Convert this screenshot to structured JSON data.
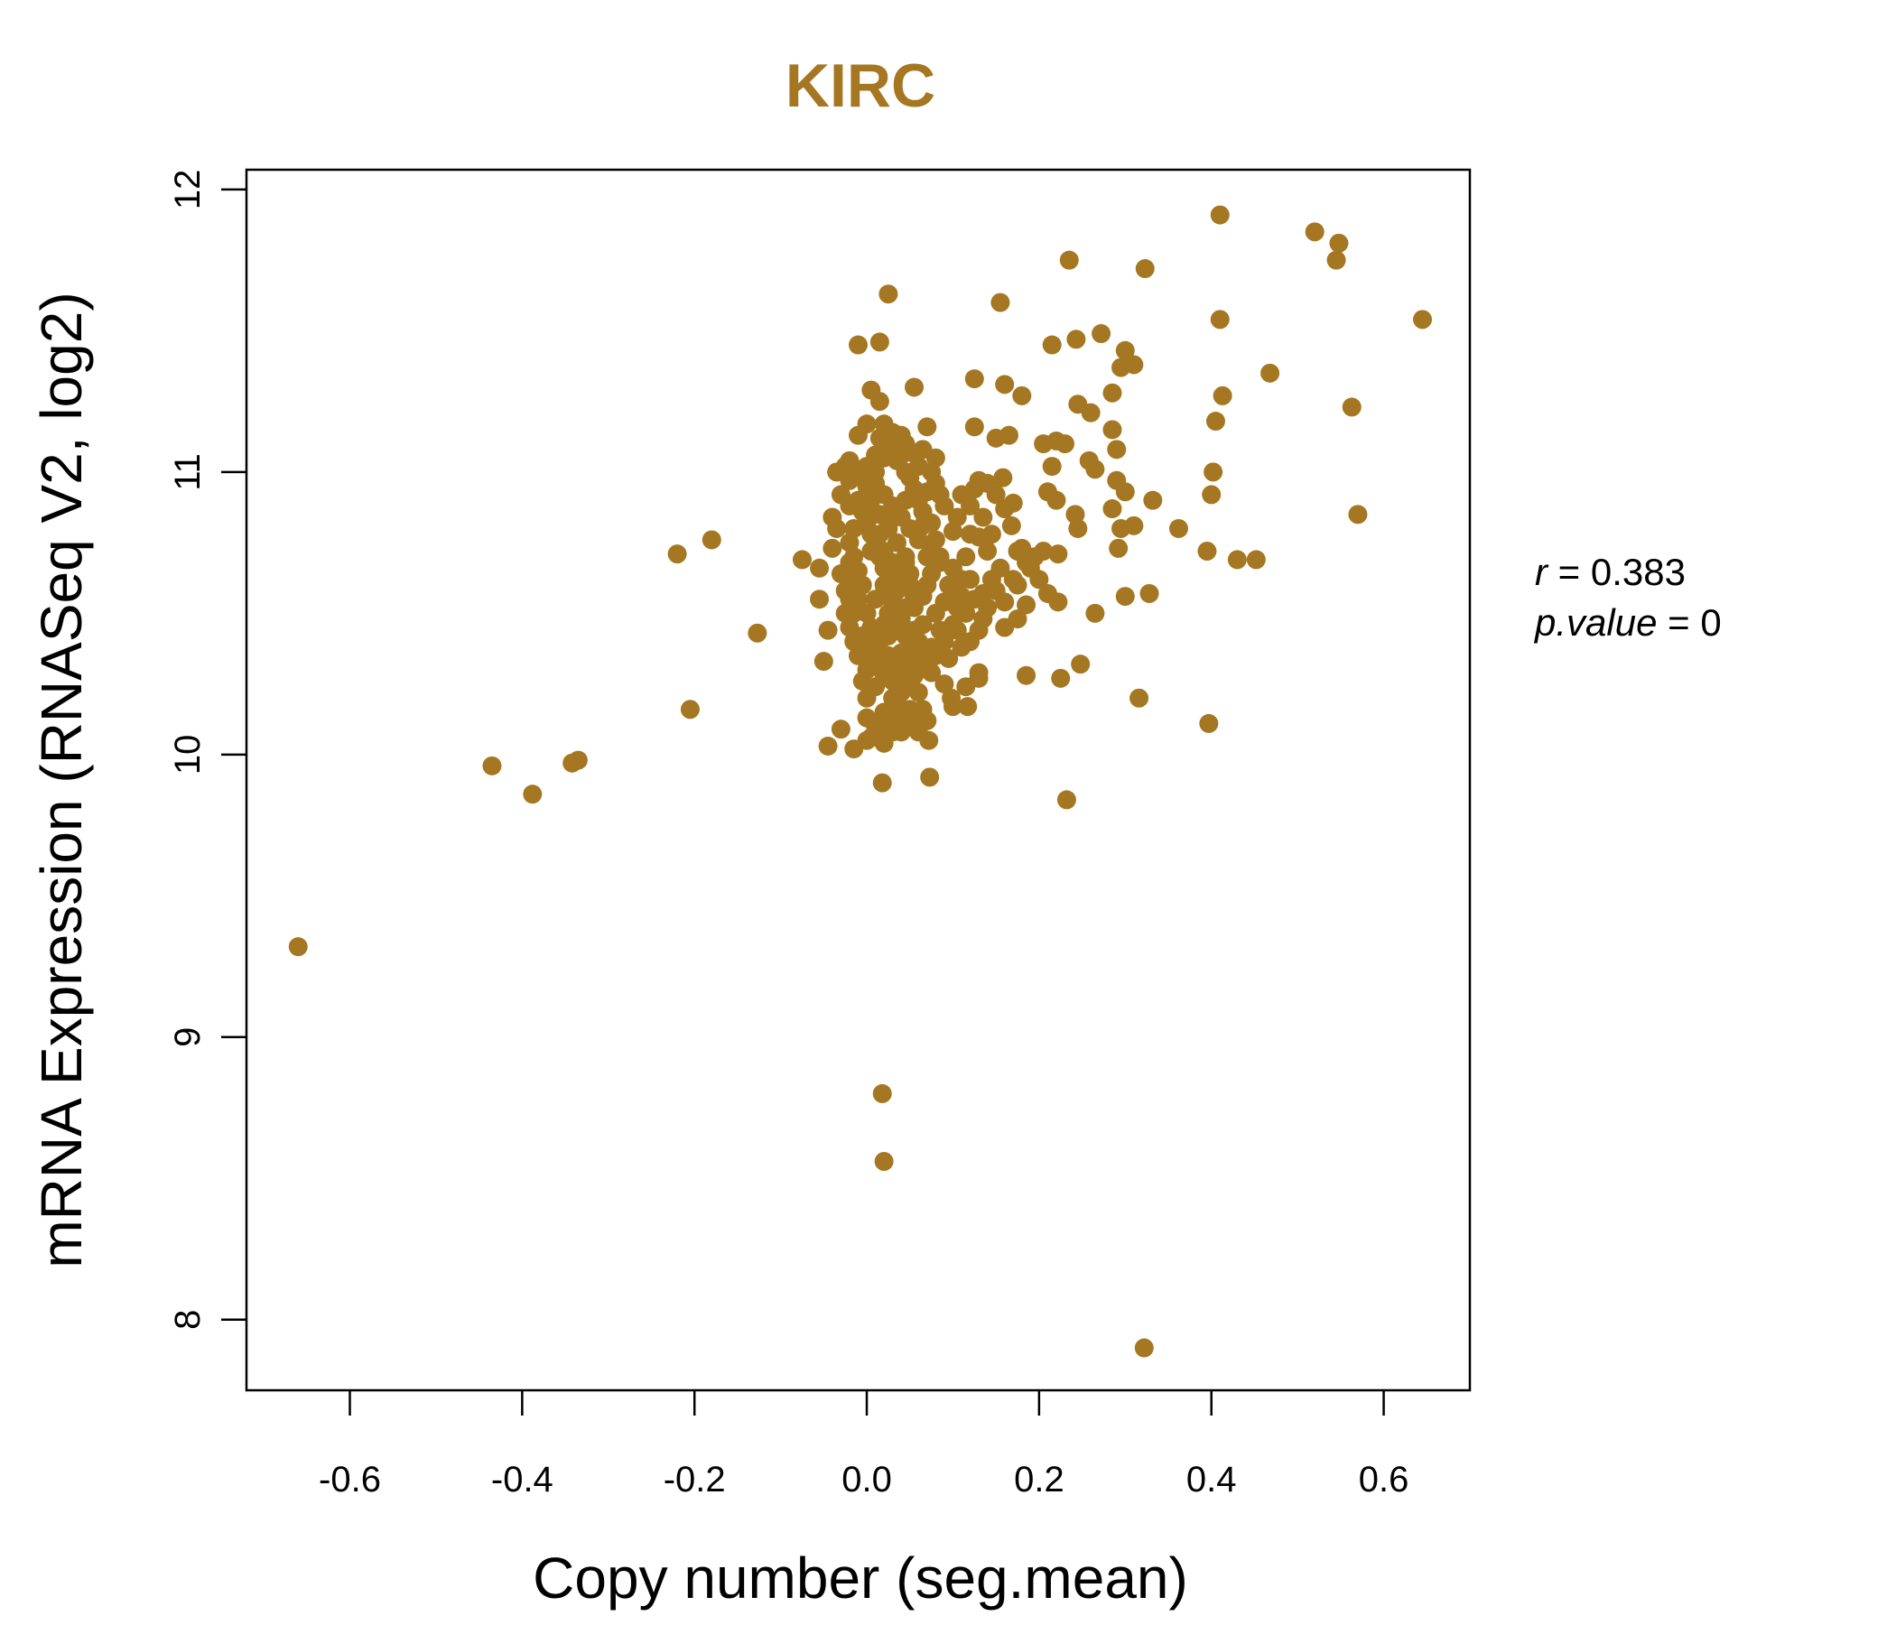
{
  "chart_data": {
    "type": "scatter",
    "title": "KIRC",
    "xlabel": "Copy number (seg.mean)",
    "ylabel": "mRNA Expression (RNASeq V2, log2)",
    "xlim": [
      -0.72,
      0.7
    ],
    "ylim": [
      7.75,
      12.07
    ],
    "x_ticks": [
      -0.6,
      -0.4,
      -0.2,
      0.0,
      0.2,
      0.4,
      0.6
    ],
    "x_tick_labels": [
      "-0.6",
      "-0.4",
      "-0.2",
      "0.0",
      "0.2",
      "0.4",
      "0.6"
    ],
    "y_ticks": [
      8,
      9,
      10,
      11,
      12
    ],
    "y_tick_labels": [
      "8",
      "9",
      "10",
      "11",
      "12"
    ],
    "grid": false,
    "stats": {
      "r_label": "r",
      "r_value": "0.383",
      "p_label": "p.value",
      "p_value": "0"
    },
    "colors": {
      "points": "#A57722",
      "title": "#A57722",
      "axes": "#000000"
    },
    "points": [
      [
        -0.66,
        9.32
      ],
      [
        -0.435,
        9.96
      ],
      [
        -0.388,
        9.86
      ],
      [
        -0.342,
        9.97
      ],
      [
        -0.335,
        9.98
      ],
      [
        -0.22,
        10.71
      ],
      [
        -0.18,
        10.76
      ],
      [
        -0.205,
        10.16
      ],
      [
        -0.127,
        10.43
      ],
      [
        0.41,
        11.91
      ],
      [
        0.52,
        11.85
      ],
      [
        0.548,
        11.81
      ],
      [
        0.545,
        11.75
      ],
      [
        0.645,
        11.54
      ],
      [
        0.235,
        11.75
      ],
      [
        0.323,
        11.72
      ],
      [
        0.155,
        11.6
      ],
      [
        0.025,
        11.63
      ],
      [
        0.41,
        11.54
      ],
      [
        0.468,
        11.35
      ],
      [
        0.413,
        11.27
      ],
      [
        0.563,
        11.23
      ],
      [
        0.57,
        10.85
      ],
      [
        0.405,
        11.18
      ],
      [
        0.402,
        11.0
      ],
      [
        0.4,
        10.92
      ],
      [
        0.43,
        10.69
      ],
      [
        0.452,
        10.69
      ],
      [
        0.395,
        10.72
      ],
      [
        0.362,
        10.8
      ],
      [
        0.332,
        10.9
      ],
      [
        0.328,
        10.57
      ],
      [
        0.3,
        10.56
      ],
      [
        0.316,
        10.2
      ],
      [
        0.397,
        10.11
      ],
      [
        0.322,
        7.9
      ],
      [
        0.232,
        9.84
      ],
      [
        0.018,
        8.8
      ],
      [
        0.02,
        8.56
      ],
      [
        -0.01,
        11.45
      ],
      [
        0.015,
        11.46
      ],
      [
        0.055,
        11.3
      ],
      [
        0.125,
        11.33
      ],
      [
        0.16,
        11.31
      ],
      [
        0.18,
        11.27
      ],
      [
        0.215,
        11.45
      ],
      [
        0.243,
        11.47
      ],
      [
        0.272,
        11.49
      ],
      [
        0.3,
        11.43
      ],
      [
        0.31,
        11.38
      ],
      [
        0.295,
        11.37
      ],
      [
        0.285,
        11.28
      ],
      [
        0.245,
        11.24
      ],
      [
        0.26,
        11.21
      ],
      [
        0.285,
        11.15
      ],
      [
        0.29,
        11.08
      ],
      [
        0.258,
        11.04
      ],
      [
        0.265,
        11.01
      ],
      [
        0.29,
        10.97
      ],
      [
        0.3,
        10.93
      ],
      [
        0.285,
        10.87
      ],
      [
        0.295,
        10.8
      ],
      [
        0.31,
        10.81
      ],
      [
        0.292,
        10.73
      ],
      [
        0.265,
        10.5
      ],
      [
        0.248,
        10.32
      ],
      [
        0.225,
        10.27
      ],
      [
        0.185,
        10.28
      ],
      [
        0.222,
        10.54
      ],
      [
        0.21,
        10.57
      ],
      [
        0.245,
        10.8
      ],
      [
        0.242,
        10.85
      ],
      [
        0.22,
        10.9
      ],
      [
        0.215,
        11.02
      ],
      [
        0.205,
        11.1
      ],
      [
        0.22,
        11.11
      ],
      [
        0.23,
        11.1
      ],
      [
        0.21,
        10.93
      ],
      [
        0.205,
        10.72
      ],
      [
        0.222,
        10.71
      ],
      [
        0.168,
        10.81
      ],
      [
        0.16,
        10.87
      ],
      [
        0.17,
        10.89
      ],
      [
        0.15,
        10.92
      ],
      [
        0.158,
        10.98
      ],
      [
        0.13,
        10.97
      ],
      [
        0.125,
        10.94
      ],
      [
        0.14,
        10.96
      ],
      [
        0.125,
        11.16
      ],
      [
        0.165,
        11.13
      ],
      [
        0.15,
        11.12
      ],
      [
        0.185,
        10.68
      ],
      [
        0.18,
        10.73
      ],
      [
        0.155,
        10.66
      ],
      [
        0.175,
        10.6
      ],
      [
        0.16,
        10.54
      ],
      [
        0.185,
        10.53
      ],
      [
        0.16,
        10.45
      ],
      [
        0.175,
        10.48
      ],
      [
        0.135,
        10.57
      ],
      [
        0.125,
        10.55
      ],
      [
        0.13,
        10.44
      ],
      [
        0.12,
        10.4
      ],
      [
        0.11,
        10.38
      ],
      [
        0.13,
        10.29
      ],
      [
        0.13,
        10.27
      ],
      [
        0.115,
        10.24
      ],
      [
        0.098,
        10.2
      ],
      [
        0.117,
        10.17
      ],
      [
        0.1,
        10.17
      ],
      [
        0.09,
        10.25
      ],
      [
        0.075,
        10.29
      ],
      [
        0.08,
        10.35
      ],
      [
        0.072,
        10.05
      ],
      [
        0.073,
        9.92
      ],
      [
        0.018,
        9.9
      ],
      [
        0.0,
        10.13
      ],
      [
        -0.015,
        10.02
      ],
      [
        -0.045,
        10.03
      ],
      [
        -0.03,
        10.09
      ],
      [
        -0.05,
        10.33
      ],
      [
        -0.045,
        10.44
      ],
      [
        -0.055,
        10.55
      ],
      [
        -0.055,
        10.66
      ],
      [
        -0.075,
        10.69
      ],
      [
        -0.04,
        10.73
      ],
      [
        -0.035,
        10.8
      ],
      [
        -0.04,
        10.84
      ],
      [
        -0.02,
        10.88
      ],
      [
        -0.03,
        10.92
      ],
      [
        -0.02,
        10.97
      ],
      [
        -0.035,
        11.0
      ],
      [
        -0.02,
        11.04
      ],
      [
        -0.025,
        11.02
      ],
      [
        -0.01,
        11.13
      ],
      [
        0.0,
        11.17
      ],
      [
        0.005,
        11.29
      ],
      [
        0.015,
        11.25
      ],
      [
        0.02,
        11.17
      ],
      [
        0.04,
        11.13
      ],
      [
        0.05,
        11.07
      ],
      [
        0.07,
        11.16
      ],
      [
        0.08,
        11.05
      ],
      [
        0.07,
        10.93
      ],
      [
        0.09,
        10.88
      ],
      [
        0.085,
        10.92
      ],
      [
        0.1,
        10.79
      ],
      [
        0.12,
        10.78
      ],
      [
        0.13,
        10.77
      ],
      [
        0.115,
        10.7
      ],
      [
        0.1,
        10.66
      ],
      [
        0.12,
        10.62
      ],
      [
        0.11,
        10.56
      ],
      [
        0.09,
        10.54
      ],
      [
        0.095,
        10.6
      ],
      [
        0.085,
        10.68
      ],
      [
        0.075,
        10.73
      ],
      [
        0.065,
        10.81
      ],
      [
        0.06,
        10.9
      ],
      [
        0.05,
        10.98
      ],
      [
        0.04,
        11.06
      ],
      [
        0.03,
        11.1
      ],
      [
        0.02,
        11.05
      ],
      [
        0.01,
        11.0
      ],
      [
        0.0,
        10.95
      ],
      [
        0.005,
        10.9
      ],
      [
        0.015,
        10.85
      ],
      [
        0.025,
        10.8
      ],
      [
        0.035,
        10.75
      ],
      [
        0.045,
        10.7
      ],
      [
        0.03,
        10.65
      ],
      [
        0.02,
        10.6
      ],
      [
        0.01,
        10.55
      ],
      [
        0.0,
        10.5
      ],
      [
        0.005,
        10.45
      ],
      [
        0.015,
        10.4
      ],
      [
        0.025,
        10.35
      ],
      [
        0.035,
        10.3
      ],
      [
        0.045,
        10.25
      ],
      [
        0.03,
        10.2
      ],
      [
        0.02,
        10.15
      ],
      [
        0.01,
        10.1
      ],
      [
        0.0,
        10.05
      ],
      [
        0.03,
        10.08
      ],
      [
        0.04,
        10.12
      ],
      [
        0.05,
        10.16
      ],
      [
        0.06,
        10.22
      ],
      [
        0.055,
        10.28
      ],
      [
        0.05,
        10.34
      ],
      [
        0.06,
        10.4
      ],
      [
        0.065,
        10.46
      ],
      [
        0.055,
        10.52
      ],
      [
        0.06,
        10.58
      ],
      [
        0.05,
        10.64
      ],
      [
        0.045,
        10.68
      ],
      [
        0.04,
        10.62
      ],
      [
        0.035,
        10.58
      ],
      [
        0.03,
        10.54
      ],
      [
        0.025,
        10.5
      ],
      [
        0.02,
        10.46
      ],
      [
        0.015,
        10.42
      ],
      [
        0.01,
        10.38
      ],
      [
        0.005,
        10.34
      ],
      [
        0.0,
        10.3
      ],
      [
        -0.005,
        10.26
      ],
      [
        0.0,
        10.2
      ],
      [
        0.01,
        10.24
      ],
      [
        0.02,
        10.28
      ],
      [
        0.03,
        10.32
      ],
      [
        0.04,
        10.36
      ],
      [
        0.045,
        10.42
      ],
      [
        0.04,
        10.48
      ],
      [
        0.035,
        10.52
      ],
      [
        0.03,
        10.56
      ],
      [
        0.025,
        10.62
      ],
      [
        0.02,
        10.66
      ],
      [
        0.015,
        10.7
      ],
      [
        0.01,
        10.74
      ],
      [
        0.005,
        10.78
      ],
      [
        0.0,
        10.82
      ],
      [
        -0.005,
        10.86
      ],
      [
        -0.01,
        10.9
      ],
      [
        -0.015,
        10.8
      ],
      [
        -0.02,
        10.75
      ],
      [
        -0.015,
        10.7
      ],
      [
        -0.01,
        10.65
      ],
      [
        -0.005,
        10.6
      ],
      [
        -0.01,
        10.55
      ],
      [
        -0.015,
        10.5
      ],
      [
        -0.02,
        10.45
      ],
      [
        -0.015,
        10.4
      ],
      [
        -0.01,
        10.35
      ],
      [
        -0.02,
        10.62
      ],
      [
        -0.025,
        10.58
      ],
      [
        0.01,
        10.96
      ],
      [
        0.02,
        10.92
      ],
      [
        0.03,
        10.88
      ],
      [
        0.04,
        10.84
      ],
      [
        0.05,
        10.8
      ],
      [
        0.06,
        10.76
      ],
      [
        0.07,
        10.7
      ],
      [
        0.075,
        10.64
      ],
      [
        0.07,
        10.6
      ],
      [
        0.065,
        10.56
      ],
      [
        0.08,
        10.5
      ],
      [
        0.085,
        10.44
      ],
      [
        0.09,
        10.4
      ],
      [
        0.1,
        10.46
      ],
      [
        0.105,
        10.52
      ],
      [
        0.075,
        10.38
      ],
      [
        0.065,
        10.34
      ],
      [
        0.06,
        10.3
      ],
      [
        0.05,
        10.26
      ],
      [
        0.04,
        10.22
      ],
      [
        0.035,
        10.18
      ],
      [
        0.025,
        10.14
      ],
      [
        0.015,
        10.1
      ],
      [
        0.005,
        10.06
      ],
      [
        0.02,
        10.04
      ],
      [
        0.04,
        10.08
      ],
      [
        0.055,
        10.12
      ],
      [
        0.065,
        10.16
      ],
      [
        0.07,
        10.12
      ],
      [
        0.06,
        10.08
      ],
      [
        0.045,
        11.0
      ],
      [
        0.035,
        11.04
      ],
      [
        0.025,
        11.08
      ],
      [
        0.06,
        11.02
      ],
      [
        0.055,
        10.94
      ],
      [
        0.045,
        10.9
      ],
      [
        0.035,
        10.86
      ],
      [
        0.025,
        10.82
      ],
      [
        0.015,
        10.78
      ],
      [
        0.005,
        10.72
      ],
      [
        0.02,
        10.72
      ],
      [
        0.03,
        10.68
      ],
      [
        0.04,
        10.64
      ],
      [
        0.05,
        10.6
      ],
      [
        0.055,
        10.56
      ],
      [
        0.045,
        10.52
      ],
      [
        0.035,
        10.46
      ],
      [
        0.025,
        10.42
      ],
      [
        0.015,
        10.36
      ],
      [
        0.005,
        10.32
      ],
      [
        0.02,
        10.3
      ],
      [
        0.03,
        10.26
      ],
      [
        0.04,
        10.3
      ],
      [
        0.05,
        10.38
      ],
      [
        0.055,
        10.44
      ],
      [
        0.015,
        11.12
      ],
      [
        0.03,
        11.14
      ],
      [
        0.045,
        11.1
      ],
      [
        0.065,
        11.08
      ],
      [
        0.075,
        11.0
      ],
      [
        0.08,
        10.96
      ],
      [
        0.065,
        10.86
      ],
      [
        0.075,
        10.82
      ],
      [
        0.08,
        10.76
      ],
      [
        0.085,
        10.7
      ],
      [
        -0.005,
        10.98
      ],
      [
        -0.01,
        11.0
      ],
      [
        0.0,
        11.02
      ],
      [
        0.01,
        11.06
      ],
      [
        -0.02,
        10.68
      ],
      [
        -0.03,
        10.64
      ],
      [
        -0.025,
        10.5
      ],
      [
        -0.02,
        10.55
      ],
      [
        -0.005,
        10.42
      ],
      [
        0.0,
        10.38
      ],
      [
        0.1,
        10.58
      ],
      [
        0.11,
        10.62
      ],
      [
        0.115,
        10.5
      ],
      [
        0.105,
        10.44
      ],
      [
        0.095,
        10.34
      ],
      [
        0.14,
        10.72
      ],
      [
        0.145,
        10.62
      ],
      [
        0.15,
        10.58
      ],
      [
        0.14,
        10.52
      ],
      [
        0.135,
        10.48
      ],
      [
        0.145,
        10.78
      ],
      [
        0.135,
        10.84
      ],
      [
        0.12,
        10.88
      ],
      [
        0.11,
        10.92
      ],
      [
        0.105,
        10.84
      ],
      [
        0.195,
        10.7
      ],
      [
        0.19,
        10.66
      ],
      [
        0.2,
        10.62
      ],
      [
        0.175,
        10.72
      ],
      [
        0.17,
        10.62
      ]
    ]
  }
}
